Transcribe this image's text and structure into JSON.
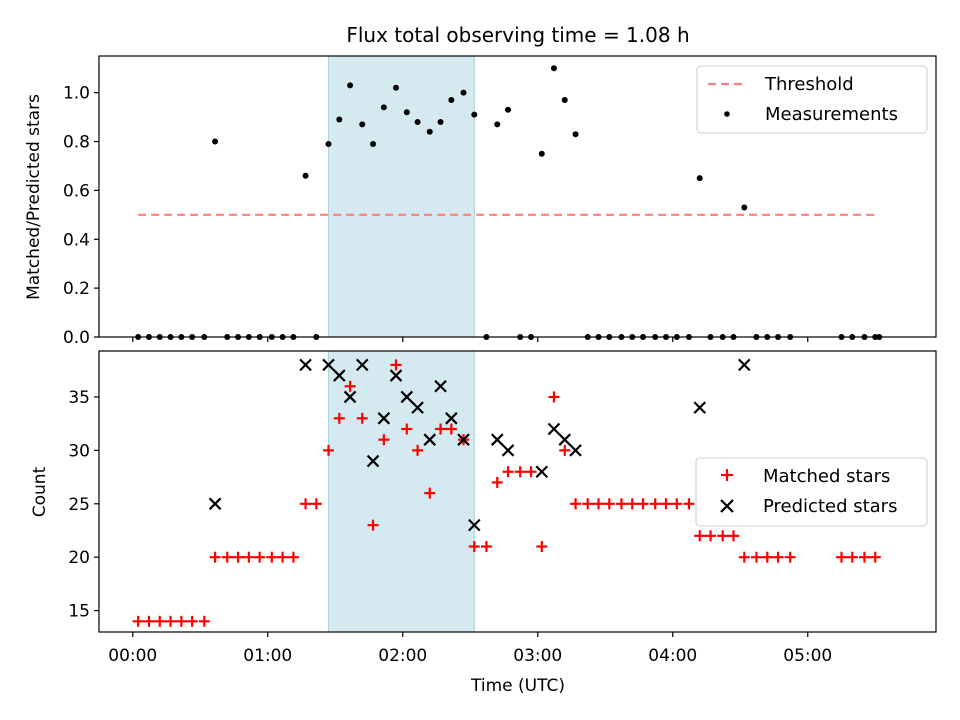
{
  "chart_data": [
    {
      "type": "scatter",
      "title": "Flux total observing time = 1.08 h",
      "xlabel": "",
      "ylabel": "Matched/Predicted stars",
      "xlim": [
        -0.25,
        5.95
      ],
      "ylim": [
        0,
        1.15
      ],
      "x_tick_labels": [
        "00:00",
        "01:00",
        "02:00",
        "03:00",
        "04:00",
        "05:00"
      ],
      "x_ticks": [
        0,
        1,
        2,
        3,
        4,
        5
      ],
      "y_ticks": [
        0.0,
        0.2,
        0.4,
        0.6,
        0.8,
        1.0
      ],
      "y_tick_labels": [
        "0.0",
        "0.2",
        "0.4",
        "0.6",
        "0.8",
        "1.0"
      ],
      "shaded_region": [
        1.45,
        2.53
      ],
      "shade_color": "#d4eaf0",
      "threshold": {
        "value": 0.5,
        "x_range": [
          0.04,
          5.53
        ],
        "color": "#ff7f7f",
        "label": "Threshold"
      },
      "legend": {
        "location": "upper right",
        "entries": [
          "Threshold",
          "Measurements"
        ]
      },
      "series": [
        {
          "name": "Measurements",
          "color": "#000000",
          "marker": "dot",
          "x": [
            0.04,
            0.12,
            0.2,
            0.28,
            0.36,
            0.44,
            0.53,
            0.61,
            0.7,
            0.78,
            0.86,
            0.94,
            1.03,
            1.11,
            1.19,
            1.28,
            1.36,
            1.45,
            1.53,
            1.61,
            1.7,
            1.78,
            1.86,
            1.95,
            2.03,
            2.11,
            2.2,
            2.28,
            2.36,
            2.45,
            2.53,
            2.62,
            2.7,
            2.78,
            2.87,
            2.95,
            3.03,
            3.12,
            3.2,
            3.28,
            3.37,
            3.45,
            3.53,
            3.62,
            3.7,
            3.78,
            3.87,
            3.95,
            4.03,
            4.12,
            4.2,
            4.28,
            4.37,
            4.45,
            4.53,
            4.62,
            4.7,
            4.78,
            4.87,
            5.25,
            5.33,
            5.42,
            5.5,
            5.53
          ],
          "y": [
            0,
            0,
            0,
            0,
            0,
            0,
            0,
            0.8,
            0,
            0,
            0,
            0,
            0,
            0,
            0,
            0.66,
            0,
            0.79,
            0.89,
            1.03,
            0.87,
            0.79,
            0.94,
            1.02,
            0.92,
            0.88,
            0.84,
            0.88,
            0.97,
            1.0,
            0.91,
            0,
            0.87,
            0.93,
            0,
            0,
            0.75,
            1.1,
            0.97,
            0.83,
            0,
            0,
            0,
            0,
            0,
            0,
            0,
            0,
            0,
            0,
            0.65,
            0,
            0,
            0,
            0.53,
            0,
            0,
            0,
            0,
            0,
            0,
            0,
            0,
            0
          ]
        }
      ]
    },
    {
      "type": "scatter",
      "title": "",
      "xlabel": "Time (UTC)",
      "ylabel": "Count",
      "xlim": [
        -0.25,
        5.95
      ],
      "ylim": [
        13,
        39.3
      ],
      "x_tick_labels": [
        "00:00",
        "01:00",
        "02:00",
        "03:00",
        "04:00",
        "05:00"
      ],
      "x_ticks": [
        0,
        1,
        2,
        3,
        4,
        5
      ],
      "y_ticks": [
        15,
        20,
        25,
        30,
        35
      ],
      "y_tick_labels": [
        "15",
        "20",
        "25",
        "30",
        "35"
      ],
      "shaded_region": [
        1.45,
        2.53
      ],
      "shade_color": "#d4eaf0",
      "legend": {
        "location": "center right",
        "entries": [
          "Matched stars",
          "Predicted stars"
        ]
      },
      "series": [
        {
          "name": "Matched stars",
          "color": "#ff0000",
          "marker": "plus",
          "x": [
            0.04,
            0.12,
            0.2,
            0.28,
            0.36,
            0.44,
            0.53,
            0.61,
            0.7,
            0.78,
            0.86,
            0.94,
            1.03,
            1.11,
            1.19,
            1.28,
            1.36,
            1.45,
            1.53,
            1.61,
            1.7,
            1.78,
            1.86,
            1.95,
            2.03,
            2.11,
            2.2,
            2.28,
            2.36,
            2.45,
            2.53,
            2.62,
            2.7,
            2.78,
            2.87,
            2.95,
            3.03,
            3.12,
            3.2,
            3.28,
            3.37,
            3.45,
            3.53,
            3.62,
            3.7,
            3.78,
            3.87,
            3.95,
            4.03,
            4.12,
            4.2,
            4.28,
            4.37,
            4.45,
            4.53,
            4.62,
            4.7,
            4.78,
            4.87,
            5.25,
            5.33,
            5.42,
            5.5
          ],
          "y": [
            14,
            14,
            14,
            14,
            14,
            14,
            14,
            20,
            20,
            20,
            20,
            20,
            20,
            20,
            20,
            25,
            25,
            30,
            33,
            36,
            33,
            23,
            31,
            38,
            32,
            30,
            26,
            32,
            32,
            31,
            21,
            21,
            27,
            28,
            28,
            28,
            21,
            35,
            30,
            25,
            25,
            25,
            25,
            25,
            25,
            25,
            25,
            25,
            25,
            25,
            22,
            22,
            22,
            22,
            20,
            20,
            20,
            20,
            20,
            20,
            20,
            20,
            20
          ]
        },
        {
          "name": "Predicted stars",
          "color": "#000000",
          "marker": "x",
          "x": [
            0.61,
            1.28,
            1.45,
            1.53,
            1.61,
            1.7,
            1.78,
            1.86,
            1.95,
            2.03,
            2.11,
            2.2,
            2.28,
            2.36,
            2.45,
            2.53,
            2.7,
            2.78,
            3.03,
            3.12,
            3.2,
            3.28,
            4.2,
            4.53
          ],
          "y": [
            25,
            38,
            38,
            37,
            35,
            38,
            29,
            33,
            37,
            35,
            34,
            31,
            36,
            33,
            31,
            23,
            31,
            30,
            28,
            32,
            31,
            30,
            34,
            38
          ]
        }
      ]
    }
  ]
}
